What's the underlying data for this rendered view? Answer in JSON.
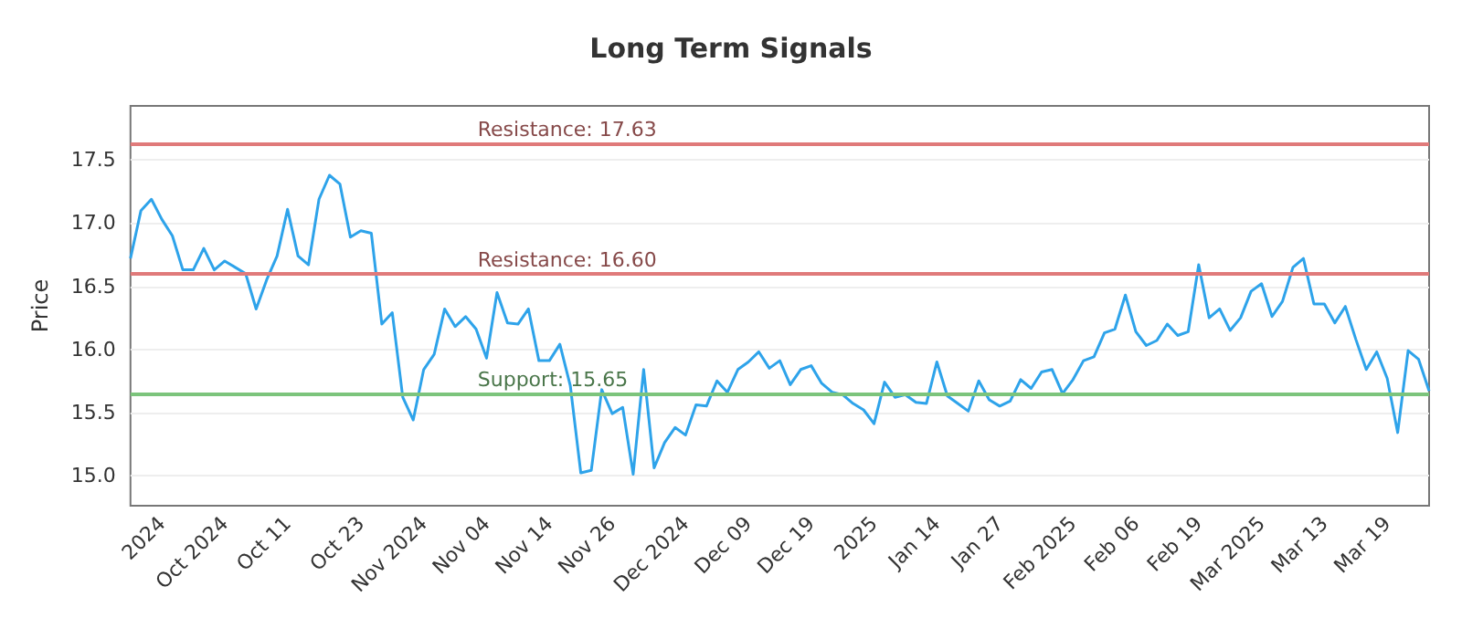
{
  "chart_data": {
    "type": "line",
    "title": "Long Term Signals",
    "ylabel": "Price",
    "categories": [
      null,
      null,
      null,
      "2024",
      null,
      null,
      null,
      null,
      null,
      "Oct 2024",
      null,
      null,
      null,
      null,
      null,
      "Oct 11",
      null,
      null,
      null,
      null,
      null,
      null,
      "Oct 23",
      null,
      null,
      null,
      null,
      null,
      "Nov 2024",
      null,
      null,
      null,
      null,
      null,
      "Nov 04",
      null,
      null,
      null,
      null,
      null,
      "Nov 14",
      null,
      null,
      null,
      null,
      null,
      "Nov 26",
      null,
      null,
      null,
      null,
      null,
      null,
      "Dec 2024",
      null,
      null,
      null,
      null,
      null,
      "Dec 09",
      null,
      null,
      null,
      null,
      null,
      "Dec 19",
      null,
      null,
      null,
      null,
      null,
      "2025",
      null,
      null,
      null,
      null,
      null,
      "Jan 14",
      null,
      null,
      null,
      null,
      null,
      "Jan 27",
      null,
      null,
      null,
      null,
      null,
      null,
      "Feb 2025",
      null,
      null,
      null,
      null,
      null,
      "Feb 06",
      null,
      null,
      null,
      null,
      null,
      "Feb 19",
      null,
      null,
      null,
      null,
      null,
      "Mar 2025",
      null,
      null,
      null,
      null,
      null,
      "Mar 13",
      null,
      null,
      null,
      null,
      null,
      "Mar 19",
      null,
      null,
      null,
      null
    ],
    "series": [
      {
        "color": "#2ea3ea",
        "values": [
          16.72,
          17.1,
          17.19,
          17.03,
          16.9,
          16.63,
          16.63,
          16.8,
          16.63,
          16.7,
          16.65,
          16.6,
          16.32,
          16.55,
          16.74,
          17.11,
          16.74,
          16.67,
          17.19,
          17.38,
          17.31,
          16.89,
          16.94,
          16.92,
          16.2,
          16.29,
          15.62,
          15.44,
          15.84,
          15.96,
          16.32,
          16.18,
          16.26,
          16.16,
          15.93,
          16.45,
          16.21,
          16.2,
          16.32,
          15.91,
          15.91,
          16.04,
          15.71,
          15.02,
          15.04,
          15.68,
          15.49,
          15.54,
          15.01,
          15.84,
          15.06,
          15.26,
          15.38,
          15.32,
          15.56,
          15.55,
          15.75,
          15.66,
          15.84,
          15.9,
          15.98,
          15.85,
          15.91,
          15.72,
          15.84,
          15.87,
          15.73,
          15.66,
          15.64,
          15.57,
          15.52,
          15.41,
          15.74,
          15.62,
          15.64,
          15.58,
          15.57,
          15.9,
          15.63,
          15.57,
          15.51,
          15.75,
          15.6,
          15.55,
          15.59,
          15.76,
          15.69,
          15.82,
          15.84,
          15.65,
          15.76,
          15.91,
          15.94,
          16.13,
          16.16,
          16.43,
          16.14,
          16.03,
          16.07,
          16.2,
          16.11,
          16.14,
          16.67,
          16.25,
          16.32,
          16.15,
          16.25,
          16.46,
          16.52,
          16.26,
          16.38,
          16.65,
          16.72,
          16.36,
          16.36,
          16.21,
          16.34,
          16.08,
          15.84,
          15.98,
          15.77,
          15.34,
          15.99,
          15.92,
          15.67
        ]
      }
    ],
    "ylim": [
      14.76,
      17.93
    ],
    "yticks": [
      {
        "value": 15,
        "label": "15.0"
      },
      15.5,
      {
        "value": 16,
        "label": "16.0"
      },
      16.5,
      {
        "value": 17,
        "label": "17.0"
      },
      17.5
    ],
    "grid": "y",
    "ref_lines": [
      {
        "axis": "y",
        "value": 17.63,
        "label": "Resistance: 17.63",
        "color": "#e07a7a"
      },
      {
        "axis": "y",
        "value": 16.6,
        "label": "Resistance: 16.60",
        "color": "#e07a7a"
      },
      {
        "axis": "y",
        "value": 15.65,
        "label": "Support: 15.65",
        "color": "#7cc47c"
      }
    ]
  }
}
